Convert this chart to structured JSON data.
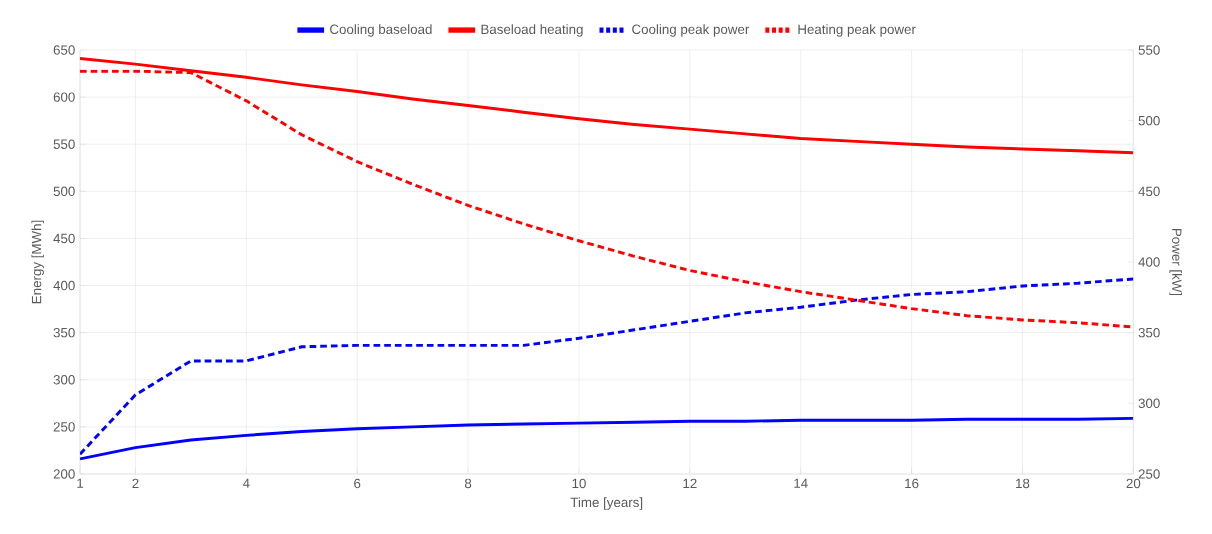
{
  "chart_data": {
    "type": "line",
    "xlabel": "Time [years]",
    "ylabel": "Energy [MWh]",
    "y2label": "Power [kW]",
    "x": [
      1,
      2,
      3,
      4,
      5,
      6,
      7,
      8,
      9,
      10,
      11,
      12,
      13,
      14,
      15,
      16,
      17,
      18,
      19,
      20
    ],
    "xlim": [
      1,
      20
    ],
    "xticks": [
      1,
      2,
      4,
      6,
      8,
      10,
      12,
      14,
      16,
      18,
      20
    ],
    "ylim": [
      200,
      650
    ],
    "yticks": [
      200,
      250,
      300,
      350,
      400,
      450,
      500,
      550,
      600,
      650
    ],
    "y2lim": [
      250,
      550
    ],
    "y2ticks": [
      250,
      300,
      350,
      400,
      450,
      500,
      550
    ],
    "grid": true,
    "legend": "top",
    "marker": "none",
    "series": [
      {
        "name": "Cooling baseload",
        "color": "#0000ff",
        "line_style": "solid",
        "values": [
          216,
          228,
          236,
          241,
          245,
          248,
          250,
          252,
          253,
          254,
          255,
          256,
          256,
          257,
          257,
          257,
          258,
          258,
          258,
          259
        ]
      },
      {
        "name": "Baseload heating",
        "color": "#ff0000",
        "line_style": "solid",
        "values": [
          641,
          635,
          628,
          621,
          613,
          606,
          598,
          591,
          584,
          577,
          571,
          566,
          561,
          556,
          553,
          550,
          547,
          545,
          543,
          541
        ]
      },
      {
        "name": "Cooling peak power",
        "color": "#0000ff",
        "line_style": "dashed",
        "axis": "y2",
        "values": [
          264,
          306,
          330,
          330,
          340,
          341,
          341,
          341,
          341,
          346,
          352,
          358,
          364,
          368,
          373,
          377,
          379,
          383,
          385,
          388
        ]
      },
      {
        "name": "Heating peak power",
        "color": "#ff0000",
        "line_style": "dashed",
        "axis": "y2",
        "values": [
          535,
          535,
          534,
          514,
          490,
          471,
          455,
          440,
          427,
          415,
          404,
          394,
          386,
          379,
          373,
          367,
          362,
          359,
          357,
          354
        ]
      }
    ]
  }
}
